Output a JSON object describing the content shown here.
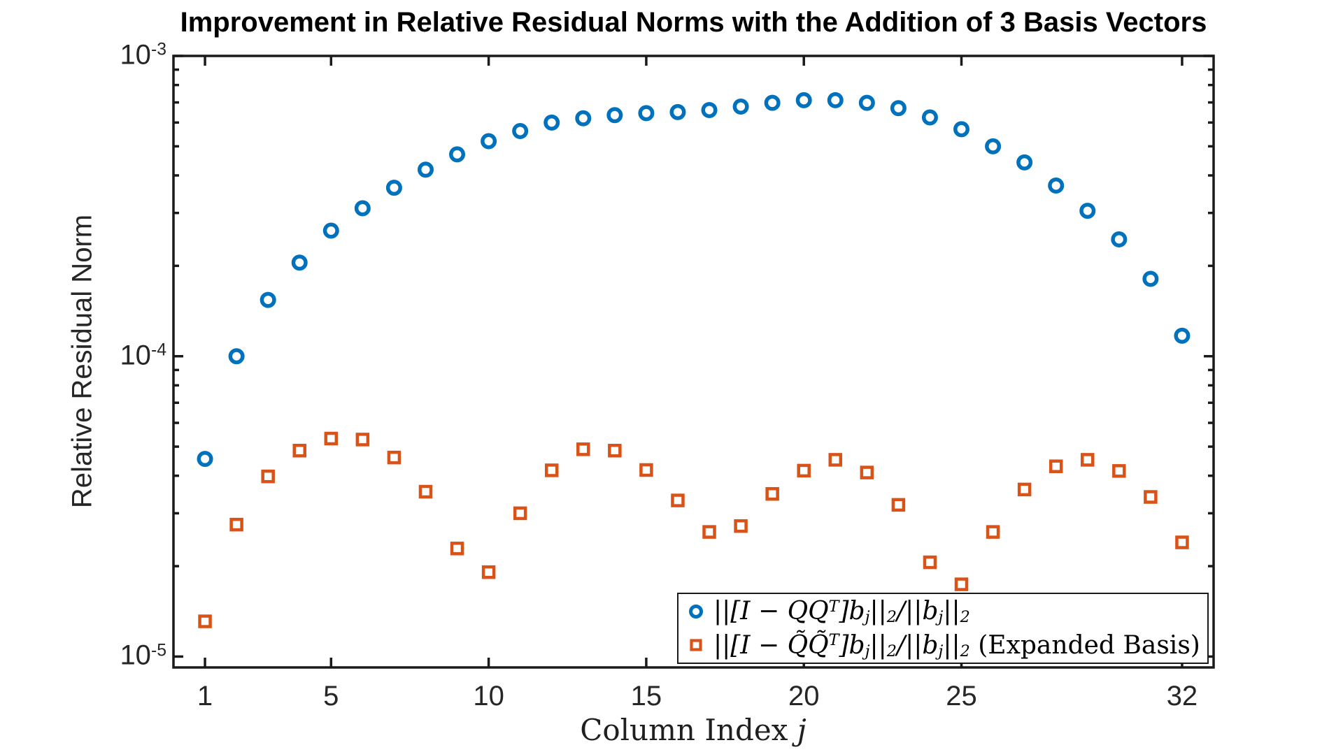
{
  "colors": {
    "background": "#ffffff",
    "axis": "#1a1a1a",
    "tick_label": "#262626",
    "series_blue": "#0072BD",
    "series_orange": "#D95319"
  },
  "chart_data": {
    "type": "scatter",
    "title": "Improvement in Relative Residual Norms with the Addition of 3 Basis Vectors",
    "xlabel_prefix": "Column Index ",
    "xlabel_var": "j",
    "ylabel": "Relative Residual Norm",
    "yscale": "log",
    "grid": false,
    "legend_position": "southeast",
    "xlim": [
      0,
      33
    ],
    "ylim": [
      9.2e-06,
      0.001
    ],
    "xticks": [
      1,
      5,
      10,
      15,
      20,
      25,
      32
    ],
    "yticks": [
      {
        "value": 0.001,
        "label": "10^-3"
      },
      {
        "value": 0.0001,
        "label": "10^-4"
      },
      {
        "value": 1e-05,
        "label": "10^-5"
      }
    ],
    "x": [
      1,
      2,
      3,
      4,
      5,
      6,
      7,
      8,
      9,
      10,
      11,
      12,
      13,
      14,
      15,
      16,
      17,
      18,
      19,
      20,
      21,
      22,
      23,
      24,
      25,
      26,
      27,
      28,
      29,
      30,
      31,
      32
    ],
    "series": [
      {
        "name": "||[I − QQ^T]b_j||_2/||b_j||_2",
        "label_math": "||[I − QQ^T]b_j||_2/||b_j||_2",
        "label_suffix": "",
        "marker": "circle",
        "color": "#0072BD",
        "values": [
          4.55e-05,
          0.0001,
          0.000154,
          0.000205,
          0.000262,
          0.000311,
          0.000364,
          0.000418,
          0.00047,
          0.00052,
          0.000562,
          0.0006,
          0.00062,
          0.000635,
          0.000645,
          0.00065,
          0.00066,
          0.000678,
          0.000698,
          0.000712,
          0.000712,
          0.000698,
          0.00067,
          0.000624,
          0.00057,
          0.0005,
          0.000442,
          0.00037,
          0.000305,
          0.000245,
          0.000181,
          0.000117
        ]
      },
      {
        "name": "||[I − Q̃Q̃^T]b_j||_2/||b_j||_2 (Expanded Basis)",
        "label_math": "||[I − Q̃Q̃^T]b_j||_2/||b_j||_2",
        "label_suffix": " (Expanded Basis)",
        "marker": "square",
        "color": "#D95319",
        "values": [
          1.31e-05,
          2.75e-05,
          3.98e-05,
          4.85e-05,
          5.32e-05,
          5.28e-05,
          4.6e-05,
          3.54e-05,
          2.29e-05,
          1.91e-05,
          3e-05,
          4.17e-05,
          4.9e-05,
          4.85e-05,
          4.18e-05,
          3.31e-05,
          2.6e-05,
          2.72e-05,
          3.48e-05,
          4.16e-05,
          4.52e-05,
          4.1e-05,
          3.2e-05,
          2.06e-05,
          1.74e-05,
          2.6e-05,
          3.6e-05,
          4.3e-05,
          4.52e-05,
          4.15e-05,
          3.4e-05,
          2.4e-05
        ]
      }
    ]
  }
}
